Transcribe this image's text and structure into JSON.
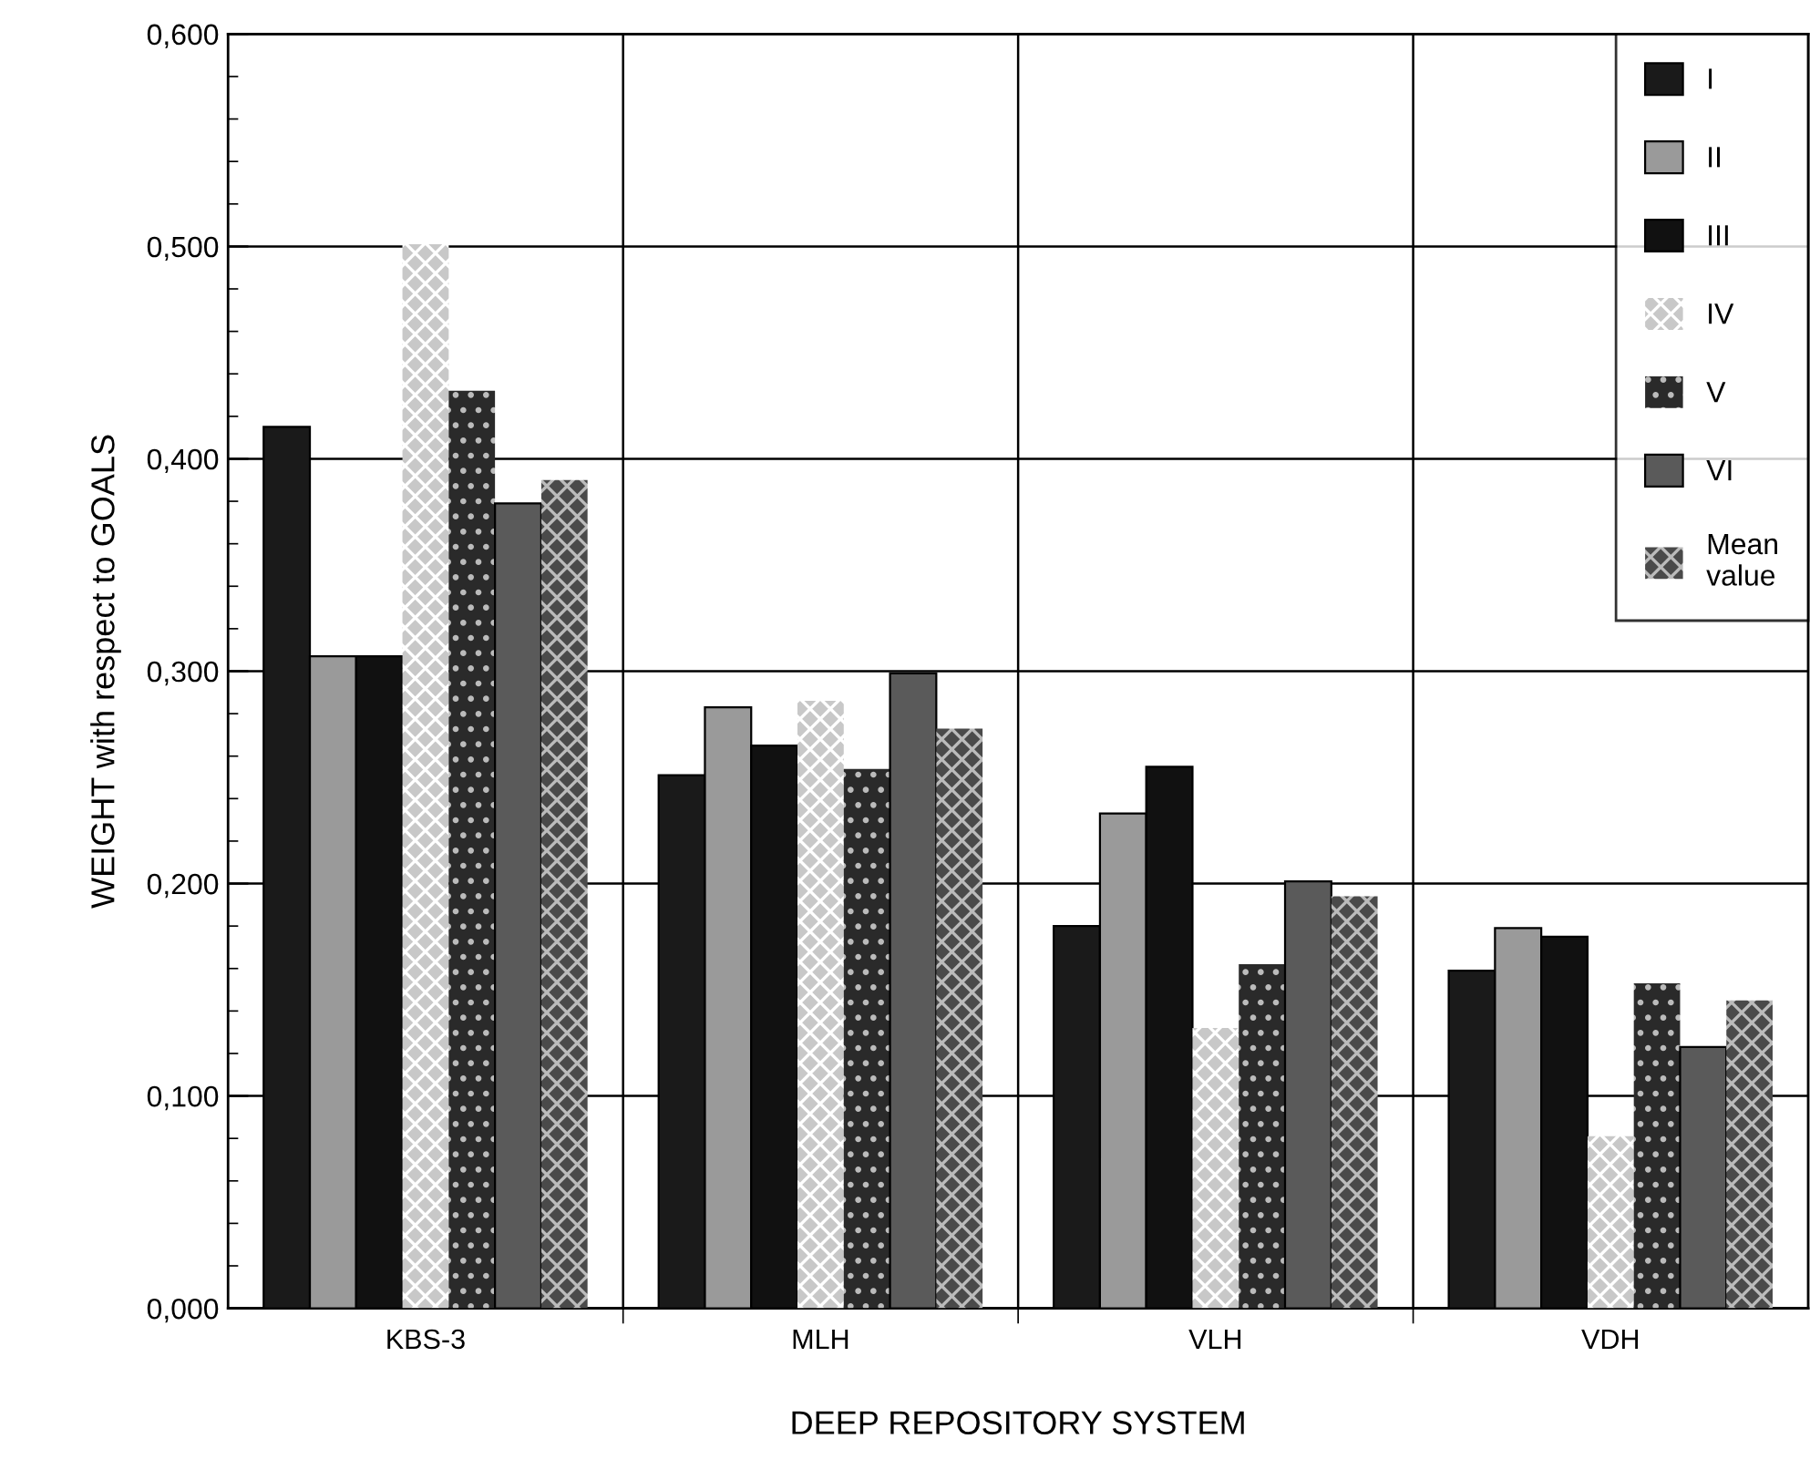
{
  "chart_data": {
    "type": "bar",
    "xlabel": "DEEP REPOSITORY SYSTEM",
    "ylabel": "WEIGHT with respect to GOALS",
    "categories": [
      "KBS-3",
      "MLH",
      "VLH",
      "VDH"
    ],
    "series": [
      {
        "name": "I",
        "color": "#1a1a1a",
        "values": [
          0.415,
          0.251,
          0.18,
          0.159
        ]
      },
      {
        "name": "II",
        "color": "#9a9a9a",
        "values": [
          0.307,
          0.283,
          0.233,
          0.179
        ]
      },
      {
        "name": "III",
        "color": "#111111",
        "values": [
          0.307,
          0.265,
          0.255,
          0.175
        ]
      },
      {
        "name": "IV",
        "color": "#c8c8c8",
        "values": [
          0.501,
          0.286,
          0.132,
          0.081
        ]
      },
      {
        "name": "V",
        "color": "#2a2a2a",
        "values": [
          0.432,
          0.254,
          0.162,
          0.153
        ]
      },
      {
        "name": "VI",
        "color": "#5a5a5a",
        "values": [
          0.379,
          0.299,
          0.201,
          0.123
        ]
      },
      {
        "name": "Mean\nvalue",
        "color": "#4a4a4a",
        "values": [
          0.39,
          0.273,
          0.194,
          0.145
        ]
      }
    ],
    "ylim": [
      0,
      0.6
    ],
    "yticks": [
      {
        "value": 0,
        "label": "0,000"
      },
      {
        "value": 0.1,
        "label": "0,100"
      },
      {
        "value": 0.2,
        "label": "0,200"
      },
      {
        "value": 0.3,
        "label": "0,300"
      },
      {
        "value": 0.4,
        "label": "0,400"
      },
      {
        "value": 0.5,
        "label": "0,500"
      },
      {
        "value": 0.6,
        "label": "0,600"
      }
    ],
    "grid": true,
    "legend": "top right"
  }
}
